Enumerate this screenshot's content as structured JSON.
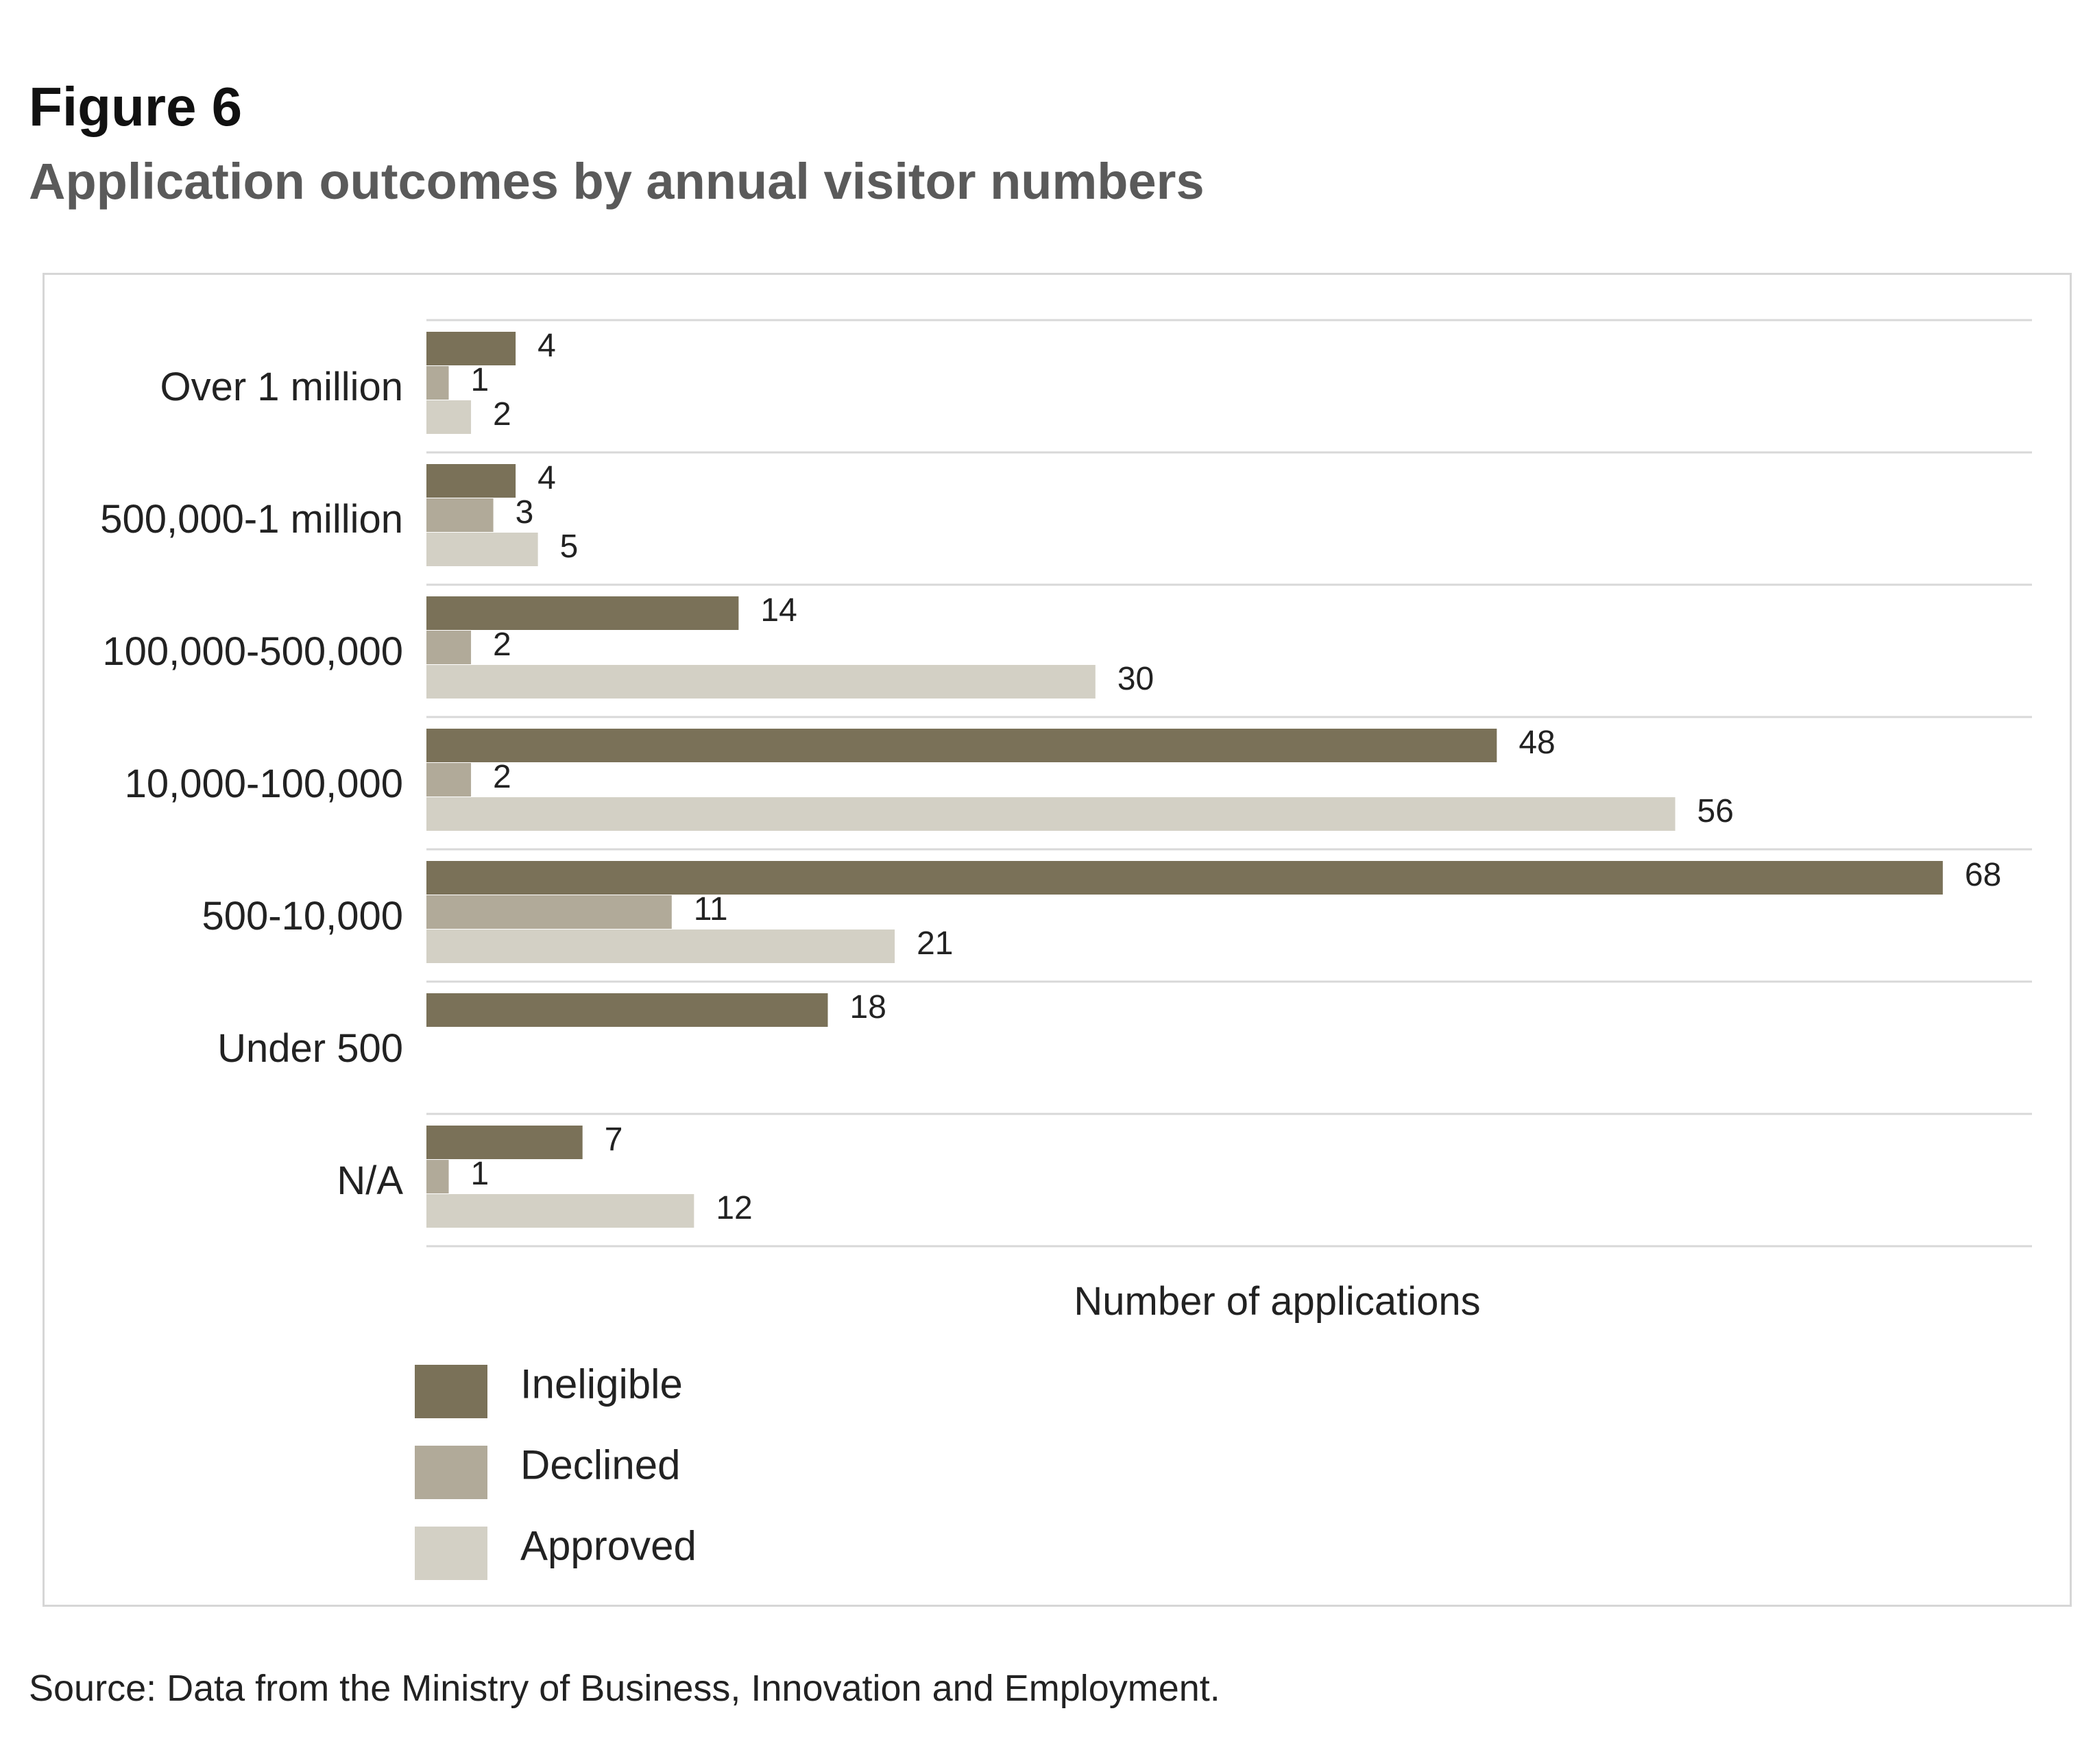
{
  "figure_label": "Figure 6",
  "title": "Application outcomes by annual visitor numbers",
  "source": "Source: Data from the Ministry of Business, Innovation and Employment.",
  "colors": {
    "ineligible": "#7a7158",
    "declined": "#b1aa99",
    "approved": "#d3d0c5",
    "gridline": "#d8d8d8",
    "text": "#222222"
  },
  "chart_data": {
    "type": "bar",
    "orientation": "horizontal",
    "categories": [
      "Over 1 million",
      "500,000-1 million",
      "100,000-500,000",
      "10,000-100,000",
      "500-10,000",
      "Under 500",
      "N/A"
    ],
    "series": [
      {
        "name": "Ineligible",
        "values": [
          4,
          4,
          14,
          48,
          68,
          18,
          7
        ]
      },
      {
        "name": "Declined",
        "values": [
          1,
          3,
          2,
          2,
          11,
          null,
          1
        ]
      },
      {
        "name": "Approved",
        "values": [
          2,
          5,
          30,
          56,
          21,
          null,
          12
        ]
      }
    ],
    "xlabel": "Number of applications",
    "xlim": [
      0,
      68
    ],
    "legend_position": "bottom-left",
    "grid": "horizontal separators between categories"
  }
}
